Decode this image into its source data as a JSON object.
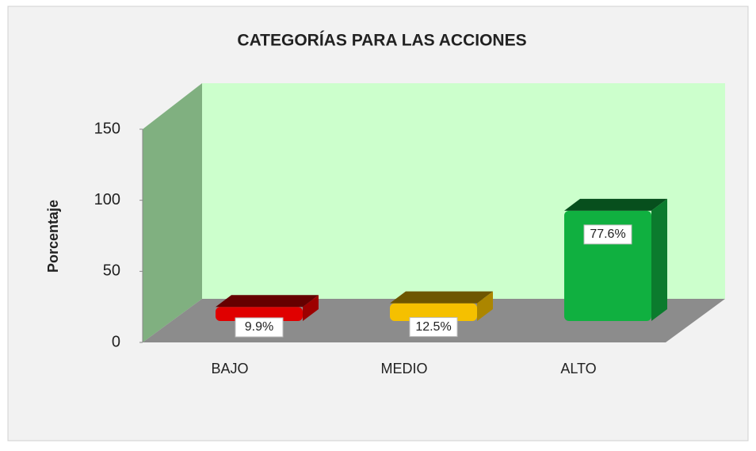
{
  "chart_data": {
    "type": "bar3d",
    "title": "CATEGORÍAS PARA LAS ACCIONES",
    "y_label": "Porcentaje",
    "categories": [
      "BAJO",
      "MEDIO",
      "ALTO"
    ],
    "values": [
      9.9,
      12.5,
      77.6
    ],
    "value_labels": [
      "9.9%",
      "12.5%",
      "77.6%"
    ],
    "colors": [
      "#e00000",
      "#f5c000",
      "#10b040"
    ],
    "ylim": [
      0,
      150
    ],
    "yticks": [
      0,
      50,
      100,
      150
    ]
  }
}
